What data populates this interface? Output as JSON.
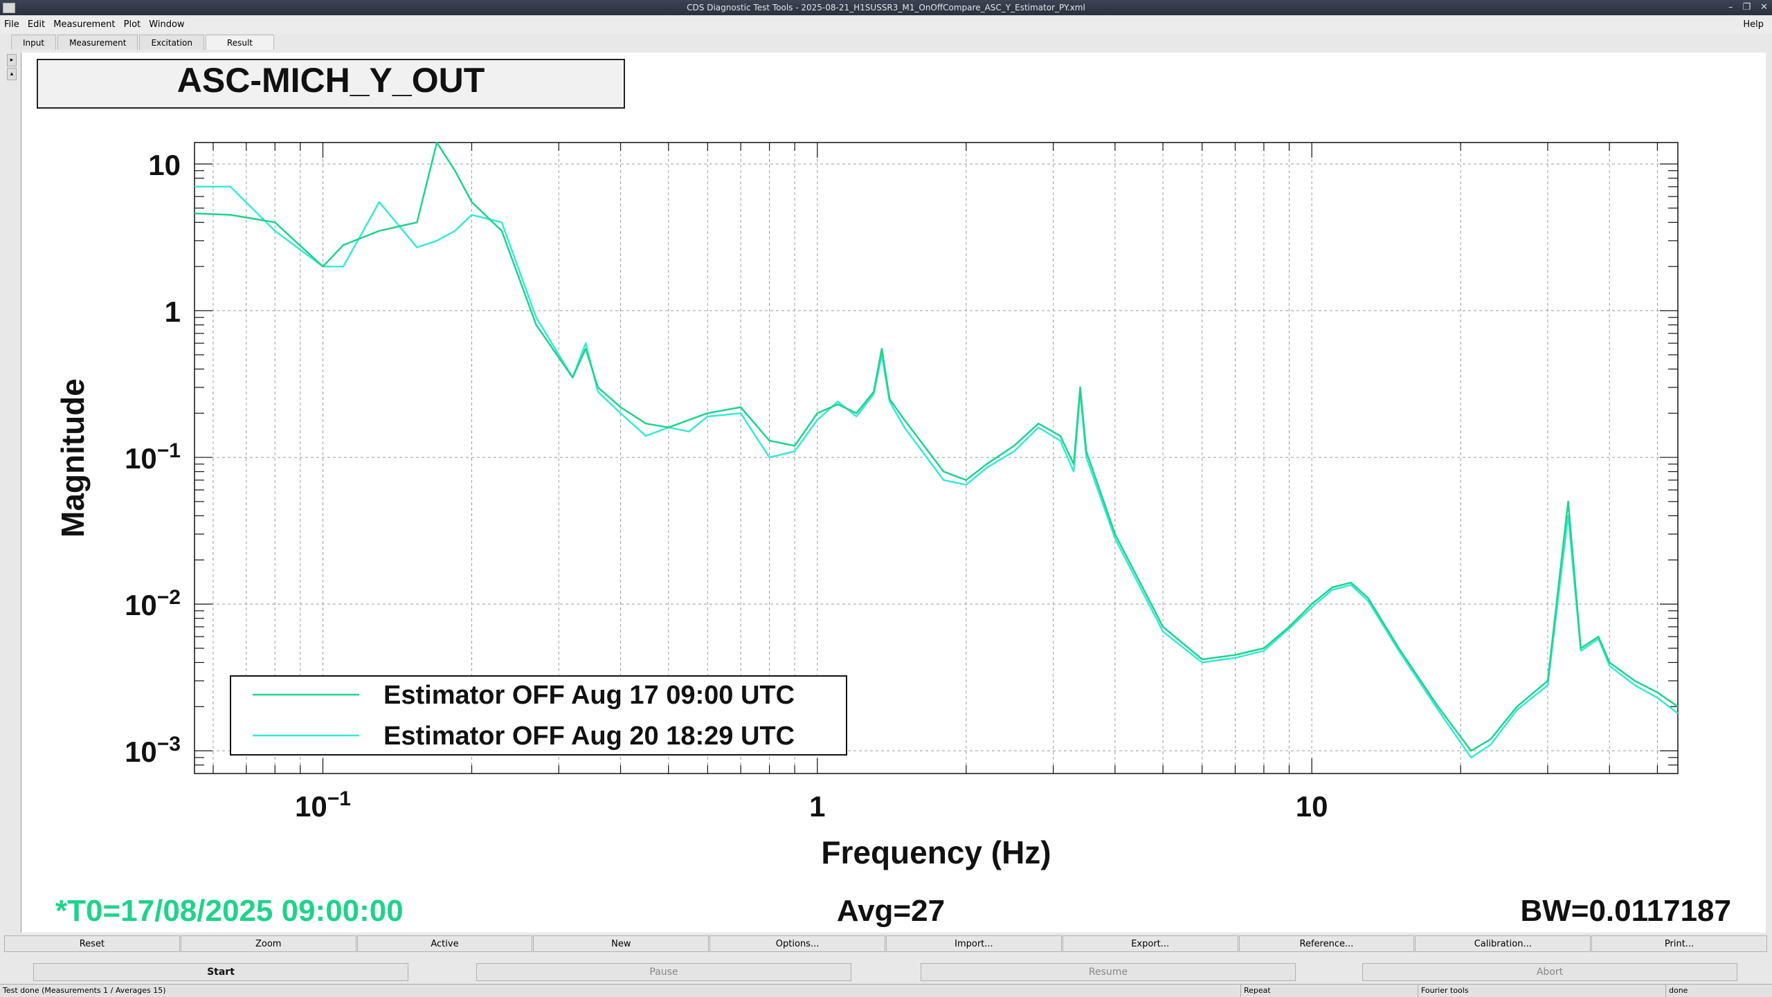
{
  "window": {
    "title": "CDS Diagnostic Test Tools - 2025-08-21_H1SUSSR3_M1_OnOffCompare_ASC_Y_Estimator_PY.xml",
    "controls": [
      "–",
      "❐",
      "✕"
    ]
  },
  "menu": {
    "items": [
      "File",
      "Edit",
      "Measurement",
      "Plot",
      "Window"
    ],
    "help": "Help"
  },
  "tabs": [
    "Input",
    "Measurement",
    "Excitation",
    "Result"
  ],
  "plot": {
    "channel_title": "ASC-MICH_Y_OUT",
    "t0_label": "*T0=17/08/2025 09:00:00",
    "avg_label": "Avg=27",
    "bw_label": "BW=0.0117187"
  },
  "chart_data": {
    "type": "line",
    "xlabel": "Frequency (Hz)",
    "ylabel": "Magnitude",
    "xscale": "log",
    "yscale": "log",
    "xlim": [
      0.055,
      55
    ],
    "ylim": [
      0.0007,
      14
    ],
    "xticks": [
      {
        "label": "10",
        "sup": "−1",
        "value": 0.1
      },
      {
        "label": "1",
        "sup": "",
        "value": 1
      },
      {
        "label": "10",
        "sup": "",
        "value": 10
      }
    ],
    "yticks": [
      {
        "label": "10",
        "sup": "",
        "value": 10
      },
      {
        "label": "1",
        "sup": "",
        "value": 1
      },
      {
        "label": "10",
        "sup": "−1",
        "value": 0.1
      },
      {
        "label": "10",
        "sup": "−2",
        "value": 0.01
      },
      {
        "label": "10",
        "sup": "−3",
        "value": 0.001
      }
    ],
    "grid": true,
    "legend_position": "bottom-left",
    "series": [
      {
        "name": "Estimator OFF Aug 17 09:00 UTC",
        "color": "#1ed38a",
        "x": [
          0.055,
          0.065,
          0.08,
          0.1,
          0.11,
          0.13,
          0.155,
          0.17,
          0.185,
          0.2,
          0.23,
          0.27,
          0.32,
          0.34,
          0.36,
          0.4,
          0.45,
          0.5,
          0.55,
          0.6,
          0.7,
          0.8,
          0.9,
          1.0,
          1.1,
          1.2,
          1.3,
          1.35,
          1.4,
          1.5,
          1.8,
          2.0,
          2.2,
          2.5,
          2.8,
          3.1,
          3.3,
          3.4,
          3.5,
          4.0,
          5.0,
          6.0,
          7.0,
          8.0,
          9.0,
          10.0,
          11.0,
          12.0,
          13.0,
          15.0,
          18.0,
          21.0,
          23.0,
          26.0,
          30.0,
          33.0,
          35.0,
          38.0,
          40.0,
          45.0,
          50.0,
          55.0
        ],
        "y": [
          4.6,
          4.5,
          4.0,
          2.0,
          2.8,
          3.5,
          4.0,
          14,
          9,
          5.5,
          3.5,
          0.8,
          0.35,
          0.55,
          0.3,
          0.22,
          0.17,
          0.16,
          0.18,
          0.2,
          0.22,
          0.13,
          0.12,
          0.2,
          0.23,
          0.2,
          0.28,
          0.55,
          0.25,
          0.18,
          0.08,
          0.07,
          0.09,
          0.12,
          0.17,
          0.14,
          0.09,
          0.3,
          0.11,
          0.03,
          0.007,
          0.0042,
          0.0045,
          0.005,
          0.007,
          0.01,
          0.013,
          0.014,
          0.011,
          0.005,
          0.002,
          0.001,
          0.0012,
          0.002,
          0.003,
          0.05,
          0.005,
          0.006,
          0.004,
          0.003,
          0.0025,
          0.002
        ]
      },
      {
        "name": "Estimator OFF Aug 20 18:29 UTC",
        "color": "#38e8d8",
        "x": [
          0.055,
          0.065,
          0.08,
          0.1,
          0.11,
          0.13,
          0.155,
          0.17,
          0.185,
          0.2,
          0.23,
          0.27,
          0.32,
          0.34,
          0.36,
          0.4,
          0.45,
          0.5,
          0.55,
          0.6,
          0.7,
          0.8,
          0.9,
          1.0,
          1.1,
          1.2,
          1.3,
          1.35,
          1.4,
          1.5,
          1.8,
          2.0,
          2.2,
          2.5,
          2.8,
          3.1,
          3.3,
          3.4,
          3.5,
          4.0,
          5.0,
          6.0,
          7.0,
          8.0,
          9.0,
          10.0,
          11.0,
          12.0,
          13.0,
          15.0,
          18.0,
          21.0,
          23.0,
          26.0,
          30.0,
          33.0,
          35.0,
          38.0,
          40.0,
          45.0,
          50.0,
          55.0
        ],
        "y": [
          7.0,
          7.0,
          3.5,
          2.0,
          2.0,
          5.5,
          2.7,
          3.0,
          3.5,
          4.5,
          4.0,
          0.9,
          0.35,
          0.6,
          0.28,
          0.2,
          0.14,
          0.16,
          0.15,
          0.19,
          0.2,
          0.1,
          0.11,
          0.18,
          0.24,
          0.19,
          0.27,
          0.5,
          0.24,
          0.16,
          0.07,
          0.065,
          0.085,
          0.11,
          0.16,
          0.13,
          0.08,
          0.28,
          0.1,
          0.028,
          0.0065,
          0.004,
          0.0043,
          0.0048,
          0.0068,
          0.0095,
          0.0125,
          0.0135,
          0.0105,
          0.0048,
          0.0019,
          0.0009,
          0.0011,
          0.0019,
          0.0028,
          0.04,
          0.0048,
          0.0058,
          0.0038,
          0.0028,
          0.0023,
          0.0018
        ]
      }
    ]
  },
  "buttons_row1": [
    "Reset",
    "Zoom",
    "Active",
    "New",
    "Options...",
    "Import...",
    "Export...",
    "Reference...",
    "Calibration...",
    "Print..."
  ],
  "buttons_row2": {
    "start": "Start",
    "pause": "Pause",
    "resume": "Resume",
    "abort": "Abort"
  },
  "status": {
    "message": "Test done (Measurements 1 / Averages 15)",
    "repeat": "Repeat",
    "tools": "Fourier tools",
    "state": "done"
  }
}
